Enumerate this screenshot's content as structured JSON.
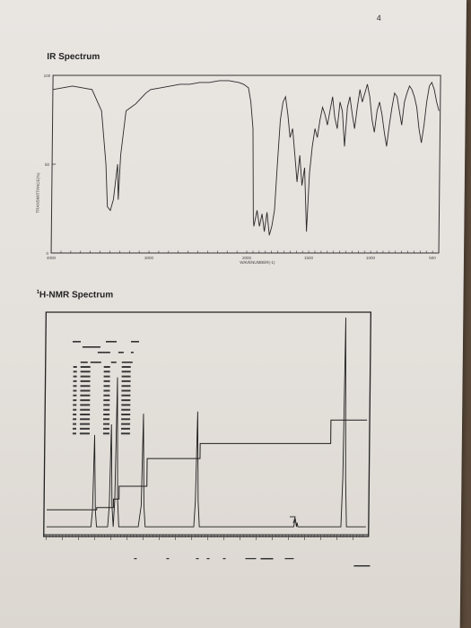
{
  "page": {
    "number": "4"
  },
  "ir": {
    "title": "IR Spectrum",
    "ylabel": "TRANSMITTANCE(%)",
    "xlabel": "WAVENUMBER(-1)",
    "y_ticks": [
      "100",
      "50",
      "0"
    ],
    "x_ticks": [
      "4000",
      "3000",
      "2000",
      "1500",
      "1000",
      "500"
    ]
  },
  "nmr": {
    "title": "1H-NMR Spectrum",
    "title_sup": "1",
    "title_rest": "H-NMR Spectrum"
  },
  "chart_data": [
    {
      "type": "line",
      "title": "IR Spectrum",
      "xlabel": "WAVENUMBER(-1)",
      "ylabel": "TRANSMITTANCE(%)",
      "x_scale": "two linear segments, break at 2000",
      "xlim": [
        4000,
        450
      ],
      "ylim": [
        0,
        100
      ],
      "grid": false,
      "series": [
        {
          "x": [
            4000,
            3800,
            3600,
            3500,
            3450,
            3430,
            3400,
            3370,
            3330,
            3320,
            3300,
            3250,
            3200,
            3150,
            3100,
            3050,
            3000,
            2900,
            2800,
            2700,
            2600,
            2500,
            2400,
            2300,
            2200,
            2100,
            2050,
            2000,
            1980,
            1960,
            1950,
            1945,
            1920,
            1900,
            1880,
            1860,
            1840,
            1820,
            1800,
            1780,
            1760,
            1740,
            1720,
            1700,
            1680,
            1660,
            1640,
            1620,
            1600,
            1580,
            1560,
            1540,
            1520,
            1500,
            1480,
            1460,
            1440,
            1420,
            1400,
            1380,
            1360,
            1340,
            1320,
            1300,
            1280,
            1260,
            1240,
            1220,
            1200,
            1180,
            1160,
            1140,
            1120,
            1100,
            1080,
            1060,
            1040,
            1020,
            1000,
            980,
            960,
            940,
            920,
            900,
            880,
            860,
            840,
            820,
            800,
            780,
            760,
            740,
            720,
            700,
            680,
            660,
            640,
            620,
            600,
            580,
            560,
            540,
            520,
            500,
            480,
            460
          ],
          "y": [
            92,
            94,
            92,
            80,
            50,
            26,
            24,
            30,
            50,
            30,
            55,
            80,
            82,
            84,
            87,
            90,
            92,
            93,
            94,
            95,
            95,
            96,
            96,
            97,
            97,
            96,
            95,
            93,
            85,
            70,
            20,
            15,
            24,
            15,
            22,
            12,
            23,
            10,
            15,
            24,
            50,
            75,
            85,
            88,
            78,
            65,
            70,
            55,
            40,
            55,
            38,
            48,
            12,
            45,
            60,
            70,
            65,
            75,
            82,
            78,
            72,
            80,
            88,
            76,
            70,
            85,
            80,
            60,
            82,
            88,
            78,
            70,
            82,
            92,
            85,
            90,
            95,
            88,
            75,
            68,
            80,
            85,
            78,
            68,
            60,
            72,
            82,
            90,
            88,
            80,
            72,
            85,
            90,
            94,
            92,
            88,
            82,
            70,
            62,
            72,
            85,
            94,
            96,
            92,
            85,
            80
          ]
        }
      ]
    },
    {
      "type": "line",
      "title": "1H-NMR Spectrum",
      "xlim": [
        11,
        -0.5
      ],
      "ylim": [
        0,
        100
      ],
      "grid": false,
      "series": [
        {
          "x": [
            11,
            9.4,
            9.35,
            9.3,
            9.25,
            9.2,
            8.8,
            8.75,
            8.7,
            8.65,
            8.6,
            8.6,
            8.55,
            8.5,
            8.45,
            8.4,
            8.0,
            7.7,
            7.6,
            7.55,
            7.5,
            7.45,
            7.4,
            6.0,
            5.7,
            5.65,
            5.6,
            5.55,
            5.5,
            2.1,
            2.05,
            2.0,
            1.98,
            1.95,
            0.4,
            0.35,
            0.3,
            0.25,
            0.2,
            -0.5
          ],
          "y": [
            2,
            2,
            10,
            45,
            10,
            2,
            2,
            12,
            50,
            12,
            2,
            2,
            15,
            72,
            15,
            2,
            2,
            2,
            12,
            55,
            12,
            2,
            2,
            2,
            2,
            14,
            56,
            14,
            2,
            2,
            6,
            2,
            4,
            2,
            2,
            25,
            100,
            25,
            2,
            2
          ]
        }
      ],
      "integral": {
        "x": [
          11,
          9.2,
          9.2,
          8.6,
          8.6,
          8.4,
          8.4,
          7.4,
          7.4,
          5.5,
          5.5,
          0.8,
          0.8,
          -0.5
        ],
        "y": [
          10,
          10,
          11,
          11,
          15,
          15,
          21,
          21,
          34,
          34,
          41,
          41,
          52,
          52
        ]
      }
    }
  ]
}
